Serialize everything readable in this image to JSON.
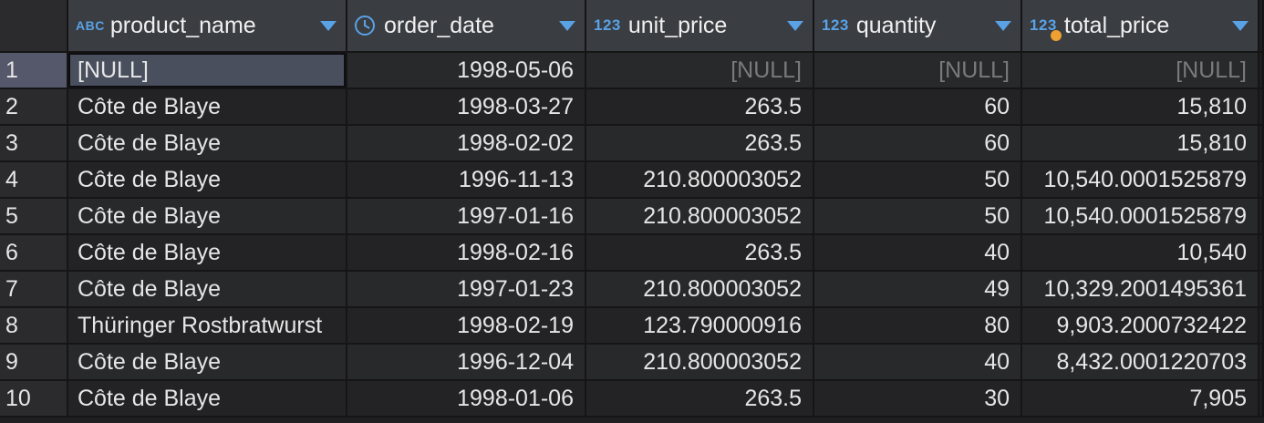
{
  "columns": [
    {
      "type_label": "ABC",
      "name": "product_name"
    },
    {
      "type_label": "",
      "name": "order_date"
    },
    {
      "type_label": "123",
      "name": "unit_price"
    },
    {
      "type_label": "123",
      "name": "quantity"
    },
    {
      "type_label": "123",
      "name": "total_price"
    }
  ],
  "rows": [
    {
      "num": "1",
      "product_name": "[NULL]",
      "order_date": "1998-05-06",
      "unit_price": "[NULL]",
      "quantity": "[NULL]",
      "total_price": "[NULL]"
    },
    {
      "num": "2",
      "product_name": "Côte de Blaye",
      "order_date": "1998-03-27",
      "unit_price": "263.5",
      "quantity": "60",
      "total_price": "15,810"
    },
    {
      "num": "3",
      "product_name": "Côte de Blaye",
      "order_date": "1998-02-02",
      "unit_price": "263.5",
      "quantity": "60",
      "total_price": "15,810"
    },
    {
      "num": "4",
      "product_name": "Côte de Blaye",
      "order_date": "1996-11-13",
      "unit_price": "210.800003052",
      "quantity": "50",
      "total_price": "10,540.0001525879"
    },
    {
      "num": "5",
      "product_name": "Côte de Blaye",
      "order_date": "1997-01-16",
      "unit_price": "210.800003052",
      "quantity": "50",
      "total_price": "10,540.0001525879"
    },
    {
      "num": "6",
      "product_name": "Côte de Blaye",
      "order_date": "1998-02-16",
      "unit_price": "263.5",
      "quantity": "40",
      "total_price": "10,540"
    },
    {
      "num": "7",
      "product_name": "Côte de Blaye",
      "order_date": "1997-01-23",
      "unit_price": "210.800003052",
      "quantity": "49",
      "total_price": "10,329.2001495361"
    },
    {
      "num": "8",
      "product_name": "Thüringer Rostbratwurst",
      "order_date": "1998-02-19",
      "unit_price": "123.790000916",
      "quantity": "80",
      "total_price": "9,903.2000732422"
    },
    {
      "num": "9",
      "product_name": "Côte de Blaye",
      "order_date": "1996-12-04",
      "unit_price": "210.800003052",
      "quantity": "40",
      "total_price": "8,432.0001220703"
    },
    {
      "num": "10",
      "product_name": "Côte de Blaye",
      "order_date": "1998-01-06",
      "unit_price": "263.5",
      "quantity": "30",
      "total_price": "7,905"
    }
  ],
  "colors": {
    "accent": "#5aa2e6",
    "header_bg": "#3a3d42",
    "null_text": "#7a7a7c",
    "indicator": "#f0a030"
  }
}
